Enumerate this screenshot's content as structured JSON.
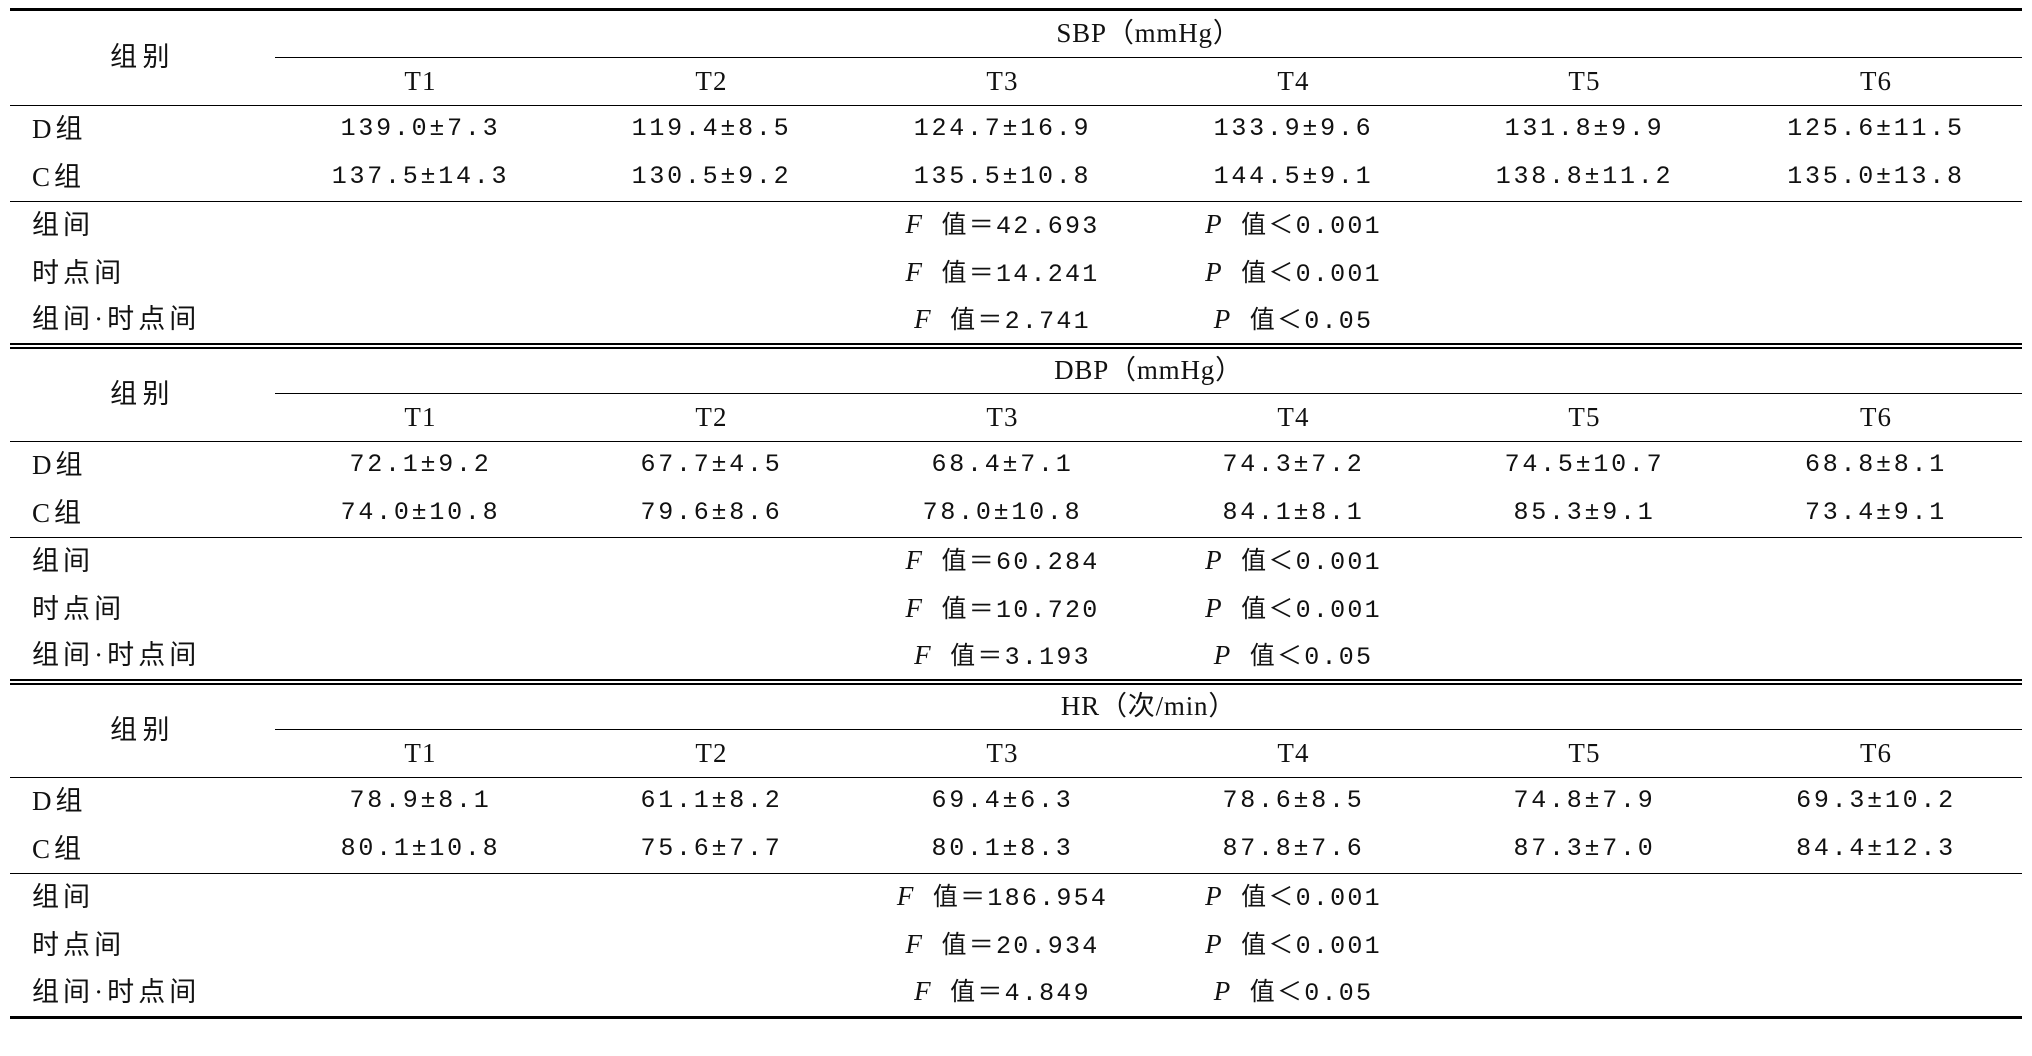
{
  "table": {
    "blocks": [
      {
        "group_header": "组别",
        "measure": "SBP（mmHg）",
        "time_points": [
          "T1",
          "T2",
          "T3",
          "T4",
          "T5",
          "T6"
        ],
        "groups": [
          {
            "label": "D组",
            "values": [
              "139.0±7.3",
              "119.4±8.5",
              "124.7±16.9",
              "133.9±9.6",
              "131.8±9.9",
              "125.6±11.5"
            ]
          },
          {
            "label": "C组",
            "values": [
              "137.5±14.3",
              "130.5±9.2",
              "135.5±10.8",
              "144.5±9.1",
              "138.8±11.2",
              "135.0±13.8"
            ]
          }
        ],
        "stats": [
          {
            "label": "组间",
            "f": "F 值＝42.693",
            "p": "P 值＜0.001"
          },
          {
            "label": "时点间",
            "f": "F 值＝14.241",
            "p": "P 值＜0.001"
          },
          {
            "label": "组间·时点间",
            "f": "F 值＝2.741",
            "p": "P 值＜0.05"
          }
        ]
      },
      {
        "group_header": "组别",
        "measure": "DBP（mmHg）",
        "time_points": [
          "T1",
          "T2",
          "T3",
          "T4",
          "T5",
          "T6"
        ],
        "groups": [
          {
            "label": "D组",
            "values": [
              "72.1±9.2",
              "67.7±4.5",
              "68.4±7.1",
              "74.3±7.2",
              "74.5±10.7",
              "68.8±8.1"
            ]
          },
          {
            "label": "C组",
            "values": [
              "74.0±10.8",
              "79.6±8.6",
              "78.0±10.8",
              "84.1±8.1",
              "85.3±9.1",
              "73.4±9.1"
            ]
          }
        ],
        "stats": [
          {
            "label": "组间",
            "f": "F 值＝60.284",
            "p": "P 值＜0.001"
          },
          {
            "label": "时点间",
            "f": "F 值＝10.720",
            "p": "P 值＜0.001"
          },
          {
            "label": "组间·时点间",
            "f": "F 值＝3.193",
            "p": "P 值＜0.05"
          }
        ]
      },
      {
        "group_header": "组别",
        "measure": "HR（次/min）",
        "time_points": [
          "T1",
          "T2",
          "T3",
          "T4",
          "T5",
          "T6"
        ],
        "groups": [
          {
            "label": "D组",
            "values": [
              "78.9±8.1",
              "61.1±8.2",
              "69.4±6.3",
              "78.6±8.5",
              "74.8±7.9",
              "69.3±10.2"
            ]
          },
          {
            "label": "C组",
            "values": [
              "80.1±10.8",
              "75.6±7.7",
              "80.1±8.3",
              "87.8±7.6",
              "87.3±7.0",
              "84.4±12.3"
            ]
          }
        ],
        "stats": [
          {
            "label": "组间",
            "f": "F 值＝186.954",
            "p": "P 值＜0.001"
          },
          {
            "label": "时点间",
            "f": "F 值＝20.934",
            "p": "P 值＜0.001"
          },
          {
            "label": "组间·时点间",
            "f": "F 值＝4.849",
            "p": "P 值＜0.05"
          }
        ]
      }
    ]
  },
  "colors": {
    "text": "#111111",
    "rules": "#000000",
    "background": "#ffffff"
  }
}
